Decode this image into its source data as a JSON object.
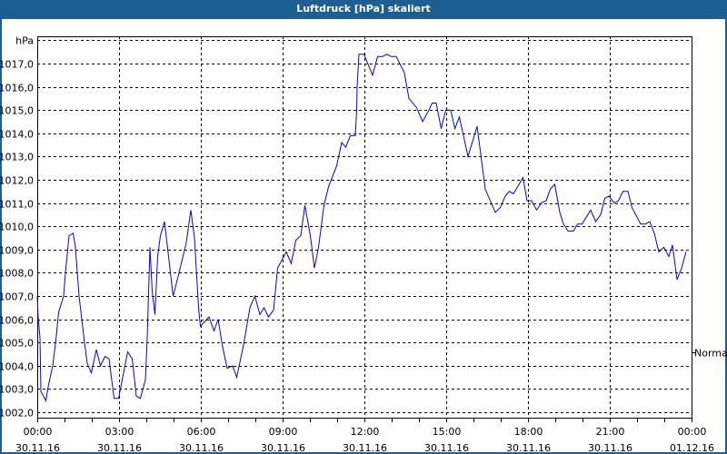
{
  "window": {
    "title": "Luftdruck [hPa] skaliert"
  },
  "colors": {
    "titlebar": "#1d5f93",
    "series": "#0000ff",
    "grid": "#000000"
  },
  "chart_data": {
    "type": "line",
    "title": "Luftdruck [hPa] skaliert",
    "ylabel": "hPa",
    "xlabel": "",
    "ylim": [
      1001.77,
      1018.17
    ],
    "xlim": [
      "30.11.16 00:00",
      "01.12.16 00:00"
    ],
    "grid": true,
    "grid_style": "dashed",
    "y_ticks": [
      "1002,0",
      "1003,0",
      "1004,0",
      "1005,0",
      "1006,0",
      "1007,0",
      "1008,0",
      "1009,0",
      "1010,0",
      "1011,0",
      "1012,0",
      "1013,0",
      "1014,0",
      "1015,0",
      "1016,0",
      "1017,0"
    ],
    "x_ticks": [
      {
        "time": "00:00",
        "date": "30.11.16"
      },
      {
        "time": "03:00",
        "date": "30.11.16"
      },
      {
        "time": "06:00",
        "date": "30.11.16"
      },
      {
        "time": "09:00",
        "date": "30.11.16"
      },
      {
        "time": "12:00",
        "date": "30.11.16"
      },
      {
        "time": "15:00",
        "date": "30.11.16"
      },
      {
        "time": "18:00",
        "date": "30.11.16"
      },
      {
        "time": "21:00",
        "date": "30.11.16"
      },
      {
        "time": "00:00",
        "date": "01.12.16"
      }
    ],
    "reference_marker": {
      "label": "Normal",
      "value": 1004.6
    },
    "series": [
      {
        "x": [
          "00:00",
          "00:02",
          "00:06",
          "00:08",
          "00:19",
          "00:24",
          "00:34",
          "00:41",
          "00:47",
          "00:58",
          "01:02",
          "01:10",
          "01:19",
          "01:24",
          "01:32",
          "01:44",
          "01:50",
          "01:59",
          "02:10",
          "02:19",
          "02:29",
          "02:38",
          "02:49",
          "02:59",
          "03:19",
          "03:29",
          "03:38",
          "03:47",
          "03:58",
          "04:02",
          "04:08",
          "04:13",
          "04:19",
          "04:25",
          "04:31",
          "04:40",
          "04:46",
          "04:59",
          "05:12",
          "05:28",
          "05:38",
          "05:46",
          "05:55",
          "05:59",
          "06:18",
          "06:29",
          "06:38",
          "06:48",
          "06:58",
          "07:10",
          "07:19",
          "07:35",
          "07:48",
          "07:59",
          "08:10",
          "08:19",
          "08:29",
          "08:40",
          "08:49",
          "09:08",
          "09:19",
          "09:29",
          "09:40",
          "09:49",
          "10:01",
          "10:10",
          "10:19",
          "10:31",
          "10:41",
          "10:59",
          "11:10",
          "11:19",
          "11:29",
          "11:40",
          "11:43",
          "11:44",
          "11:48",
          "11:59",
          "12:18",
          "12:29",
          "12:40",
          "12:49",
          "12:59",
          "13:10",
          "13:28",
          "13:38",
          "13:55",
          "14:08",
          "14:22",
          "14:29",
          "14:38",
          "14:49",
          "14:59",
          "15:10",
          "15:19",
          "15:29",
          "15:48",
          "16:08",
          "16:26",
          "16:48",
          "16:59",
          "17:10",
          "17:19",
          "17:28",
          "17:49",
          "17:58",
          "18:08",
          "18:19",
          "18:29",
          "18:40",
          "18:49",
          "18:59",
          "19:10",
          "19:18",
          "19:28",
          "19:40",
          "19:49",
          "19:59",
          "20:18",
          "20:29",
          "20:40",
          "20:49",
          "20:58",
          "21:10",
          "21:19",
          "21:29",
          "21:40",
          "21:49",
          "22:08",
          "22:18",
          "22:28",
          "22:38",
          "22:48",
          "22:59",
          "23:10",
          "23:18",
          "23:28",
          "23:38",
          "23:48"
        ],
        "y": [
          1007.0,
          1006.1,
          1005.2,
          1002.9,
          1002.5,
          1003.1,
          1004.0,
          1005.1,
          1006.3,
          1007.0,
          1008.0,
          1009.6,
          1009.7,
          1009.1,
          1007.0,
          1005.0,
          1004.1,
          1003.7,
          1004.7,
          1004.0,
          1004.4,
          1004.3,
          1002.6,
          1002.6,
          1004.6,
          1004.3,
          1002.7,
          1002.6,
          1003.4,
          1005.2,
          1009.1,
          1007.2,
          1006.2,
          1008.7,
          1009.6,
          1010.2,
          1009.2,
          1007.0,
          1008.0,
          1009.3,
          1010.7,
          1009.5,
          1006.5,
          1005.7,
          1006.1,
          1005.5,
          1006.0,
          1004.8,
          1003.9,
          1004.0,
          1003.5,
          1005.0,
          1006.5,
          1007.0,
          1006.2,
          1006.5,
          1006.1,
          1006.4,
          1008.2,
          1008.9,
          1008.4,
          1009.4,
          1009.6,
          1010.9,
          1009.6,
          1008.2,
          1009.1,
          1010.9,
          1011.7,
          1012.6,
          1013.6,
          1013.4,
          1013.9,
          1013.9,
          1015.0,
          1016.0,
          1017.4,
          1017.4,
          1016.5,
          1017.3,
          1017.3,
          1017.4,
          1017.3,
          1017.3,
          1016.6,
          1015.5,
          1015.1,
          1014.5,
          1015.0,
          1015.3,
          1015.3,
          1014.2,
          1015.0,
          1015.0,
          1014.2,
          1014.7,
          1013.0,
          1014.3,
          1011.6,
          1010.6,
          1010.8,
          1011.3,
          1011.5,
          1011.4,
          1012.1,
          1011.1,
          1011.1,
          1010.7,
          1011.0,
          1011.1,
          1011.6,
          1011.8,
          1010.6,
          1010.1,
          1009.8,
          1009.8,
          1010.1,
          1010.1,
          1010.7,
          1010.2,
          1010.5,
          1011.2,
          1011.3,
          1011.0,
          1011.1,
          1011.5,
          1011.5,
          1010.8,
          1010.1,
          1010.1,
          1010.2,
          1009.7,
          1008.9,
          1009.1,
          1008.7,
          1009.2,
          1007.7,
          1008.2,
          1008.9
        ]
      }
    ]
  }
}
